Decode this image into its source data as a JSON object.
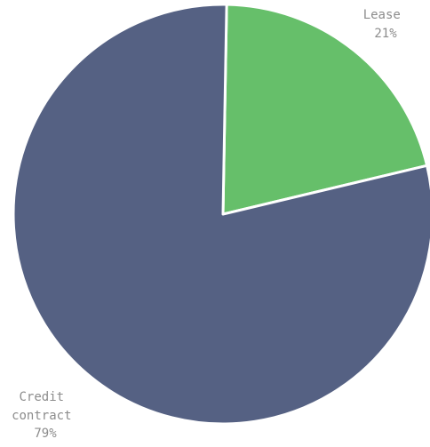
{
  "chart_data": {
    "type": "pie",
    "slices": [
      {
        "label": "Lease",
        "percent_label": "21%",
        "value": 21,
        "color": "#66bf6a"
      },
      {
        "label": "Credit contract",
        "percent_label": "79%",
        "value": 79,
        "color": "#556183"
      }
    ],
    "start_angle_deg": 1,
    "direction": "clockwise",
    "slice_border_color": "#ffffff"
  }
}
